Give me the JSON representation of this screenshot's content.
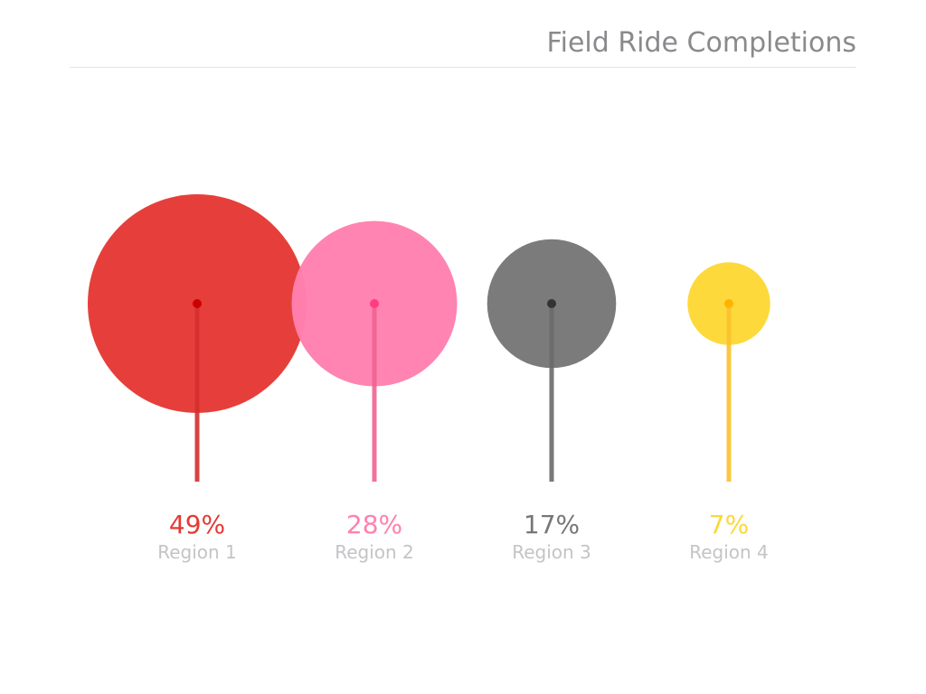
{
  "chart_data": {
    "type": "bubble-lollipop",
    "title": "Field Ride Completions",
    "categories": [
      "Region 1",
      "Region 2",
      "Region 3",
      "Region 4"
    ],
    "values": [
      49,
      28,
      17,
      7
    ],
    "value_labels": [
      "49%",
      "28%",
      "17%",
      "7%"
    ],
    "unit": "%",
    "colors": [
      "#e53935",
      "#ff80ae",
      "#777777",
      "#fdd835"
    ],
    "stem_colors": [
      "#d32f2f",
      "#f06292",
      "#6a6a6a",
      "#fbc02d"
    ],
    "dot_colors": [
      "#cc0000",
      "#ff3d7f",
      "#333333",
      "#ffb300"
    ],
    "grid": false,
    "legend": "none"
  }
}
